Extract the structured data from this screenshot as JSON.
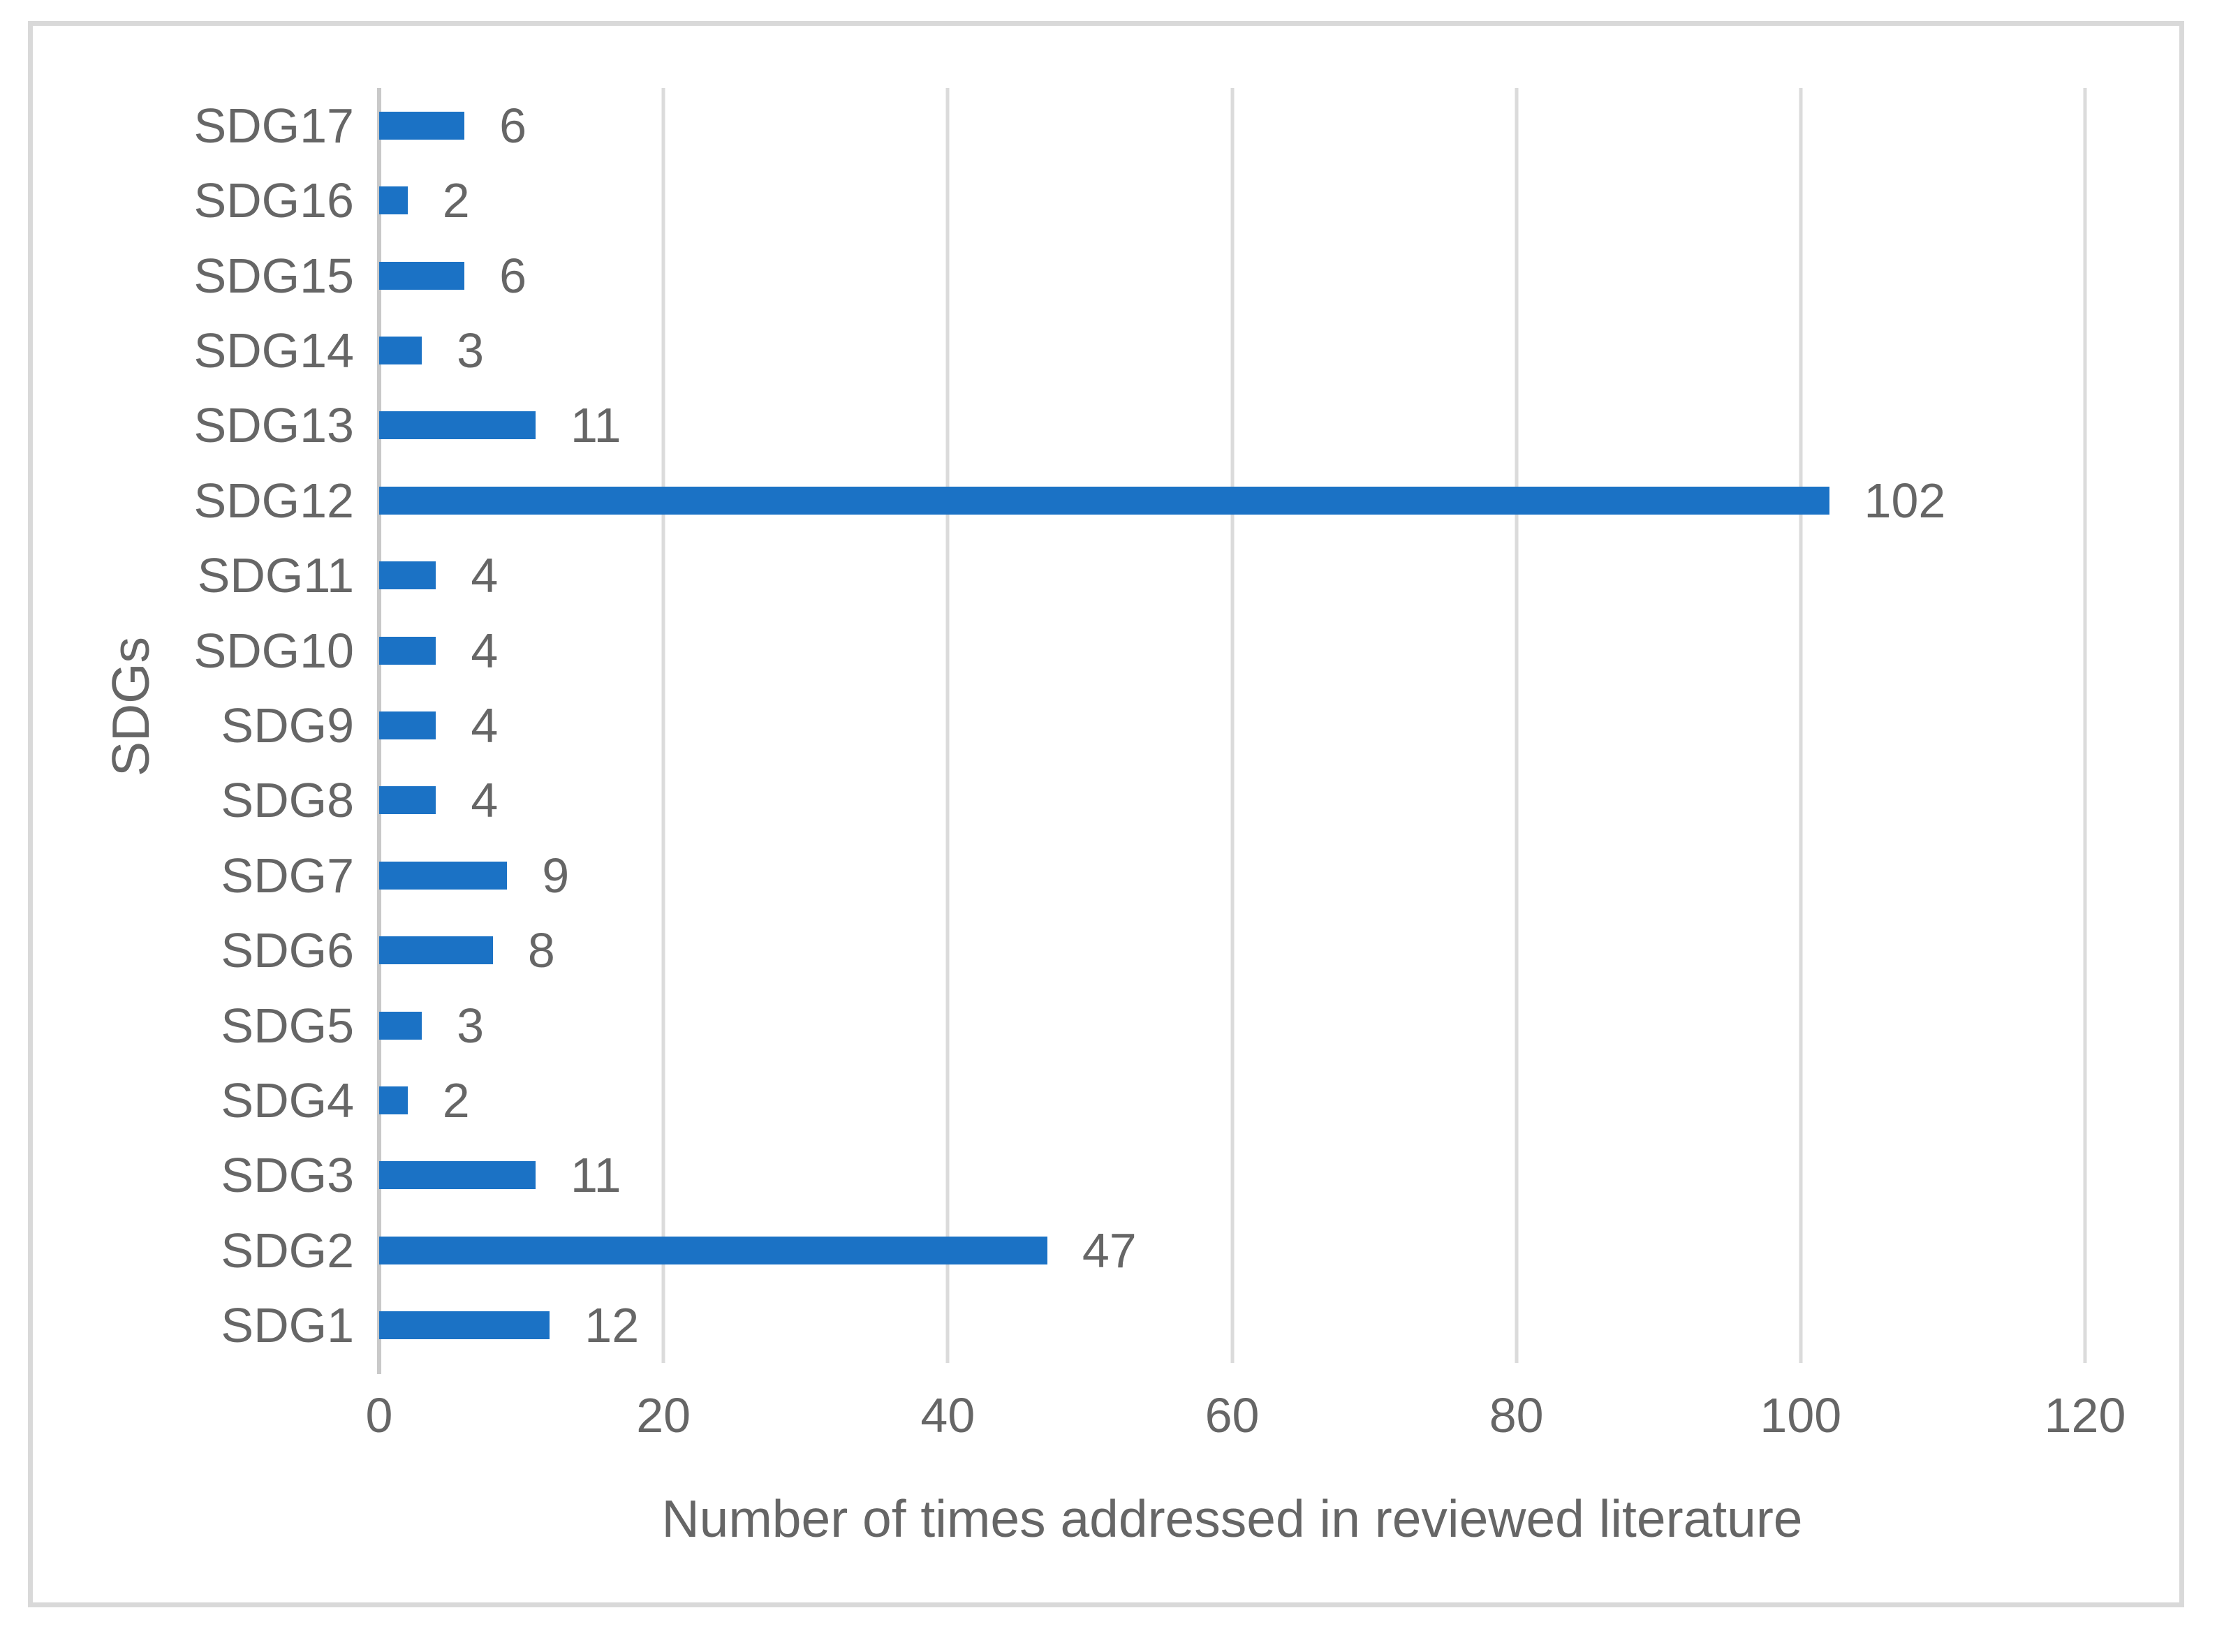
{
  "chart_data": {
    "type": "bar",
    "orientation": "horizontal",
    "categories": [
      "SDG17",
      "SDG16",
      "SDG15",
      "SDG14",
      "SDG13",
      "SDG12",
      "SDG11",
      "SDG10",
      "SDG9",
      "SDG8",
      "SDG7",
      "SDG6",
      "SDG5",
      "SDG4",
      "SDG3",
      "SDG2",
      "SDG1"
    ],
    "values": [
      6,
      2,
      6,
      3,
      11,
      102,
      4,
      4,
      4,
      4,
      9,
      8,
      3,
      2,
      11,
      47,
      12
    ],
    "title": "",
    "xlabel": "Number of times addressed in reviewed literature",
    "ylabel": "SDGs",
    "xlim": [
      0,
      120
    ],
    "xticks": [
      0,
      20,
      40,
      60,
      80,
      100,
      120
    ],
    "grid": true,
    "legend": "none",
    "data_labels": true,
    "bar_color": "#1b72c5",
    "gridline_color": "#dbdbdb",
    "axis_line_color": "#c9c9c9",
    "text_color": "#666666",
    "frame_color": "#d9d9d9"
  }
}
